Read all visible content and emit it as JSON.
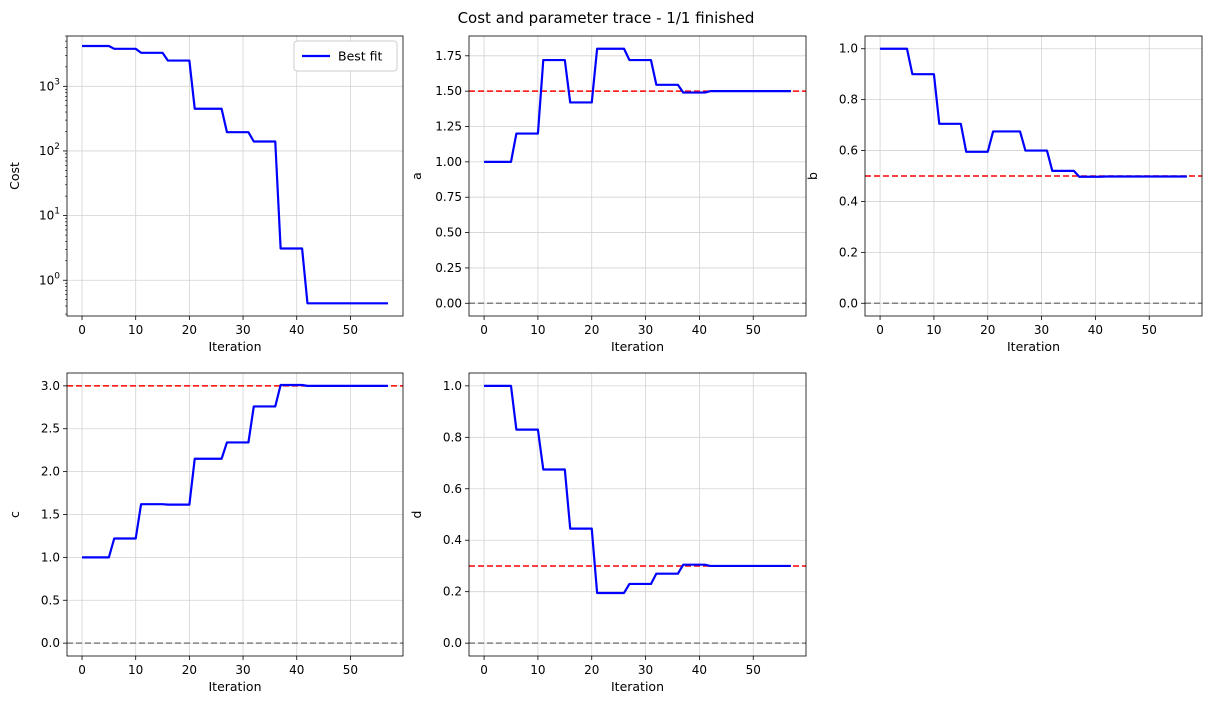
{
  "figure": {
    "title": "Cost and parameter trace - 1/1 finished"
  },
  "colors": {
    "series": "#0000ff",
    "target": "#ff0000",
    "zero": "#808080",
    "grid": "#d3d3d3"
  },
  "chart_data": [
    {
      "id": "cost",
      "type": "line",
      "xlabel": "Iteration",
      "ylabel": "Cost",
      "yscale": "log",
      "xlim": [
        -2.8,
        59.8
      ],
      "ylim": [
        0.28,
        6000
      ],
      "xticks": [
        0,
        10,
        20,
        30,
        40,
        50
      ],
      "yticks": [
        1,
        10,
        100,
        1000
      ],
      "ytick_labels": [
        "10^0",
        "10^1",
        "10^2",
        "10^3"
      ],
      "grid": true,
      "legend": {
        "position": "top-right",
        "entries": [
          "Best fit"
        ]
      },
      "series": [
        {
          "name": "Best fit",
          "x": [
            0,
            5,
            6,
            10,
            11,
            15,
            16,
            20,
            21,
            26,
            27,
            31,
            32,
            36,
            37,
            41,
            42,
            57
          ],
          "y": [
            4200,
            4200,
            3800,
            3800,
            3300,
            3300,
            2500,
            2500,
            450,
            450,
            195,
            195,
            140,
            140,
            3.1,
            3.1,
            0.44,
            0.44
          ]
        }
      ]
    },
    {
      "id": "a",
      "type": "line",
      "xlabel": "Iteration",
      "ylabel": "a",
      "yscale": "linear",
      "xlim": [
        -2.8,
        59.8
      ],
      "ylim": [
        -0.09,
        1.89
      ],
      "xticks": [
        0,
        10,
        20,
        30,
        40,
        50
      ],
      "yticks": [
        0.0,
        0.25,
        0.5,
        0.75,
        1.0,
        1.25,
        1.5,
        1.75
      ],
      "ytick_labels": [
        "0.00",
        "0.25",
        "0.50",
        "0.75",
        "1.00",
        "1.25",
        "1.50",
        "1.75"
      ],
      "grid": true,
      "target": 1.5,
      "zero_line": 0,
      "series": [
        {
          "x": [
            0,
            5,
            6,
            10,
            11,
            15,
            16,
            20,
            21,
            26,
            27,
            31,
            32,
            36,
            37,
            41,
            42,
            57
          ],
          "y": [
            1.0,
            1.0,
            1.2,
            1.2,
            1.72,
            1.72,
            1.42,
            1.42,
            1.8,
            1.8,
            1.72,
            1.72,
            1.545,
            1.545,
            1.49,
            1.49,
            1.5,
            1.5
          ]
        }
      ]
    },
    {
      "id": "b",
      "type": "line",
      "xlabel": "Iteration",
      "ylabel": "b",
      "yscale": "linear",
      "xlim": [
        -2.8,
        59.8
      ],
      "ylim": [
        -0.05,
        1.05
      ],
      "xticks": [
        0,
        10,
        20,
        30,
        40,
        50
      ],
      "yticks": [
        0.0,
        0.2,
        0.4,
        0.6,
        0.8,
        1.0
      ],
      "ytick_labels": [
        "0.0",
        "0.2",
        "0.4",
        "0.6",
        "0.8",
        "1.0"
      ],
      "grid": true,
      "target": 0.5,
      "zero_line": 0,
      "series": [
        {
          "x": [
            0,
            5,
            6,
            10,
            11,
            15,
            16,
            20,
            21,
            26,
            27,
            31,
            32,
            36,
            37,
            41,
            42,
            57
          ],
          "y": [
            1.0,
            1.0,
            0.9,
            0.9,
            0.705,
            0.705,
            0.595,
            0.595,
            0.675,
            0.675,
            0.6,
            0.6,
            0.52,
            0.52,
            0.497,
            0.497,
            0.498,
            0.498
          ]
        }
      ]
    },
    {
      "id": "c",
      "type": "line",
      "xlabel": "Iteration",
      "ylabel": "c",
      "yscale": "linear",
      "xlim": [
        -2.8,
        59.8
      ],
      "ylim": [
        -0.15,
        3.15
      ],
      "xticks": [
        0,
        10,
        20,
        30,
        40,
        50
      ],
      "yticks": [
        0.0,
        0.5,
        1.0,
        1.5,
        2.0,
        2.5,
        3.0
      ],
      "ytick_labels": [
        "0.0",
        "0.5",
        "1.0",
        "1.5",
        "2.0",
        "2.5",
        "3.0"
      ],
      "grid": true,
      "target": 3.0,
      "zero_line": 0,
      "series": [
        {
          "x": [
            0,
            5,
            6,
            10,
            11,
            15,
            16,
            20,
            21,
            26,
            27,
            31,
            32,
            36,
            37,
            41,
            42,
            57
          ],
          "y": [
            1.0,
            1.0,
            1.22,
            1.22,
            1.62,
            1.62,
            1.615,
            1.615,
            2.15,
            2.15,
            2.34,
            2.34,
            2.76,
            2.76,
            3.01,
            3.01,
            3.0,
            3.0
          ]
        }
      ]
    },
    {
      "id": "d",
      "type": "line",
      "xlabel": "Iteration",
      "ylabel": "d",
      "yscale": "linear",
      "xlim": [
        -2.8,
        59.8
      ],
      "ylim": [
        -0.05,
        1.05
      ],
      "xticks": [
        0,
        10,
        20,
        30,
        40,
        50
      ],
      "yticks": [
        0.0,
        0.2,
        0.4,
        0.6,
        0.8,
        1.0
      ],
      "ytick_labels": [
        "0.0",
        "0.2",
        "0.4",
        "0.6",
        "0.8",
        "1.0"
      ],
      "grid": true,
      "target": 0.3,
      "zero_line": 0,
      "series": [
        {
          "x": [
            0,
            5,
            6,
            10,
            11,
            15,
            16,
            20,
            21,
            26,
            27,
            31,
            32,
            36,
            37,
            41,
            42,
            57
          ],
          "y": [
            1.0,
            1.0,
            0.83,
            0.83,
            0.675,
            0.675,
            0.445,
            0.445,
            0.195,
            0.195,
            0.23,
            0.23,
            0.27,
            0.27,
            0.305,
            0.305,
            0.3,
            0.3
          ]
        }
      ]
    }
  ]
}
